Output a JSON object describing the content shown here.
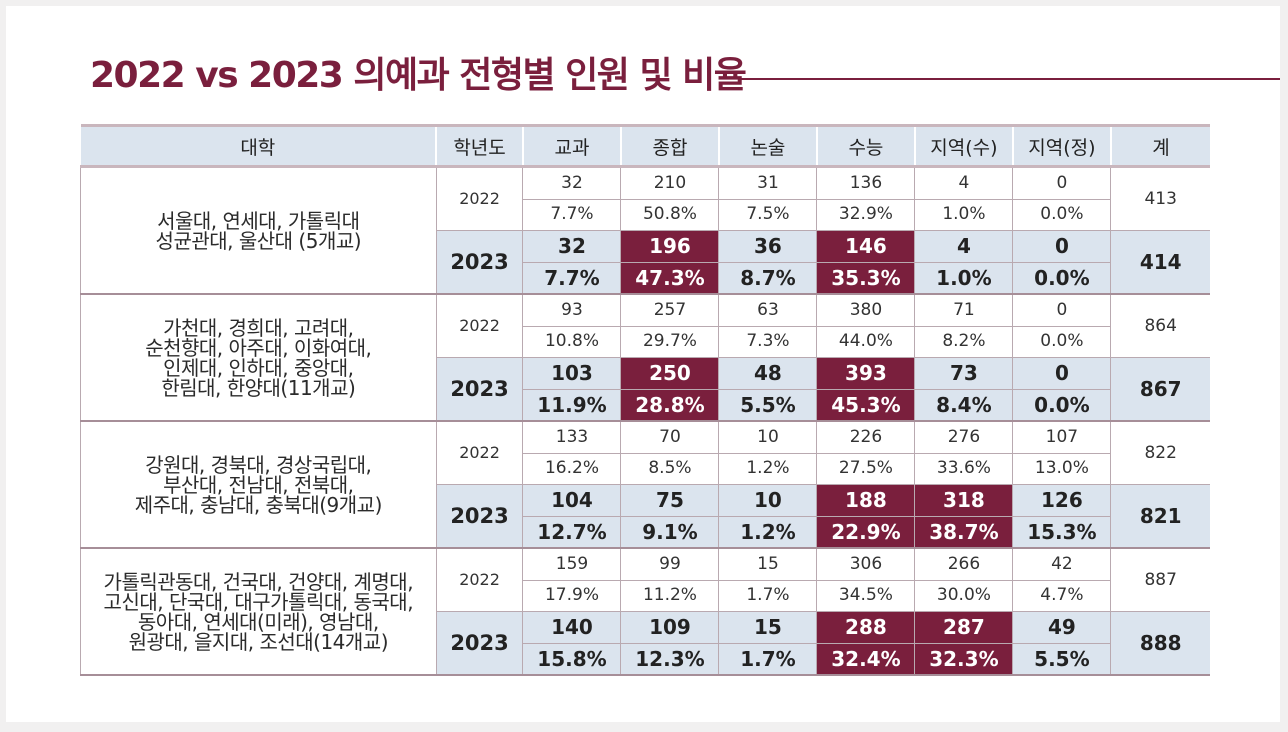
{
  "title": "2022 vs 2023  의예과 전형별 인원 및 비율",
  "headers": {
    "univ": "대학",
    "year": "학년도",
    "cols": [
      "교과",
      "종합",
      "논술",
      "수능",
      "지역(수)",
      "지역(정)"
    ],
    "total": "계"
  },
  "groups": [
    {
      "univ_lines": [
        "서울대, 연세대, 가톨릭대",
        "성균관대, 울산대 (5개교)"
      ],
      "y2022": {
        "year": "2022",
        "counts": [
          "32",
          "210",
          "31",
          "136",
          "4",
          "0"
        ],
        "ratios": [
          "7.7%",
          "50.8%",
          "7.5%",
          "32.9%",
          "1.0%",
          "0.0%"
        ],
        "total": "413"
      },
      "y2023": {
        "year": "2023",
        "counts": [
          "32",
          "196",
          "36",
          "146",
          "4",
          "0"
        ],
        "ratios": [
          "7.7%",
          "47.3%",
          "8.7%",
          "35.3%",
          "1.0%",
          "0.0%"
        ],
        "total": "414",
        "highlight": [
          1,
          3
        ]
      }
    },
    {
      "univ_lines": [
        "가천대, 경희대, 고려대,",
        "순천향대, 아주대, 이화여대,",
        "인제대, 인하대, 중앙대,",
        "한림대, 한양대(11개교)"
      ],
      "y2022": {
        "year": "2022",
        "counts": [
          "93",
          "257",
          "63",
          "380",
          "71",
          "0"
        ],
        "ratios": [
          "10.8%",
          "29.7%",
          "7.3%",
          "44.0%",
          "8.2%",
          "0.0%"
        ],
        "total": "864"
      },
      "y2023": {
        "year": "2023",
        "counts": [
          "103",
          "250",
          "48",
          "393",
          "73",
          "0"
        ],
        "ratios": [
          "11.9%",
          "28.8%",
          "5.5%",
          "45.3%",
          "8.4%",
          "0.0%"
        ],
        "total": "867",
        "highlight": [
          1,
          3
        ]
      }
    },
    {
      "univ_lines": [
        "강원대, 경북대, 경상국립대,",
        "부산대, 전남대, 전북대,",
        "제주대, 충남대, 충북대(9개교)"
      ],
      "y2022": {
        "year": "2022",
        "counts": [
          "133",
          "70",
          "10",
          "226",
          "276",
          "107"
        ],
        "ratios": [
          "16.2%",
          "8.5%",
          "1.2%",
          "27.5%",
          "33.6%",
          "13.0%"
        ],
        "total": "822"
      },
      "y2023": {
        "year": "2023",
        "counts": [
          "104",
          "75",
          "10",
          "188",
          "318",
          "126"
        ],
        "ratios": [
          "12.7%",
          "9.1%",
          "1.2%",
          "22.9%",
          "38.7%",
          "15.3%"
        ],
        "total": "821",
        "highlight": [
          3,
          4
        ]
      }
    },
    {
      "univ_lines": [
        "가톨릭관동대, 건국대, 건양대, 계명대,",
        "고신대, 단국대, 대구가톨릭대, 동국대,",
        "동아대, 연세대(미래), 영남대,",
        "원광대, 을지대, 조선대(14개교)"
      ],
      "y2022": {
        "year": "2022",
        "counts": [
          "159",
          "99",
          "15",
          "306",
          "266",
          "42"
        ],
        "ratios": [
          "17.9%",
          "11.2%",
          "1.7%",
          "34.5%",
          "30.0%",
          "4.7%"
        ],
        "total": "887"
      },
      "y2023": {
        "year": "2023",
        "counts": [
          "140",
          "109",
          "15",
          "288",
          "287",
          "49"
        ],
        "ratios": [
          "15.8%",
          "12.3%",
          "1.7%",
          "32.4%",
          "32.3%",
          "5.5%"
        ],
        "total": "888",
        "highlight": [
          3,
          4
        ]
      }
    }
  ]
}
